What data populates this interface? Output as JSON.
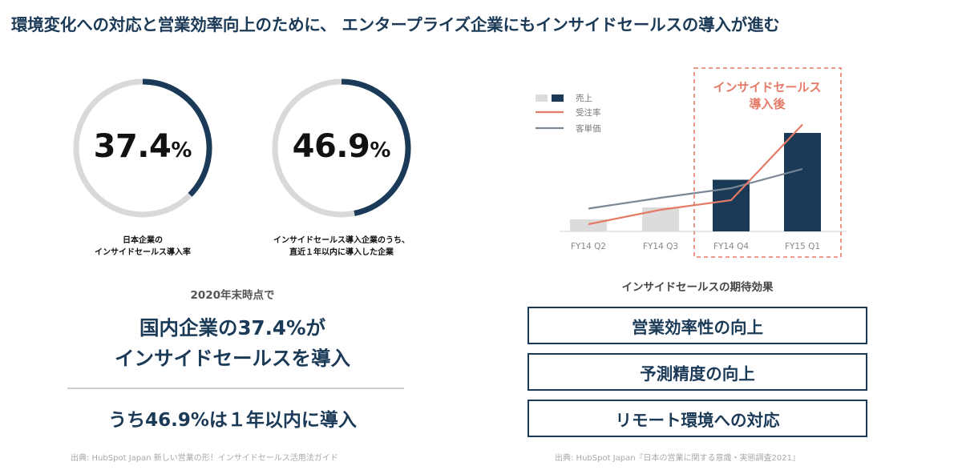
{
  "title": "環境変化への対応と営業効率向上のために、 エンタープライズ企業にもインサイドセールスの導入が進む",
  "rings": [
    {
      "value": "37.4",
      "unit": "%",
      "fraction": 0.374,
      "caption_line1": "日本企業の",
      "caption_line2": "インサイドセールス導入率"
    },
    {
      "value": "46.9",
      "unit": "%",
      "fraction": 0.469,
      "caption_line1": "インサイドセールス導入企業のうち、",
      "caption_line2": "直近１年以内に導入した企業"
    }
  ],
  "left": {
    "as_of": "2020年末時点で",
    "headline_line1": "国内企業の37.4%が",
    "headline_line2": "インサイドセールスを導入",
    "headline2": "うち46.9%は１年以内に導入",
    "source": "出典: HubSpot Japan 新しい営業の形！インサイドセールス活用法ガイド"
  },
  "colors": {
    "navy": "#1b3a57",
    "gray_bar": "#dcdcdc",
    "ring_track": "#d9d9d9",
    "coral": "#e57a66",
    "slate": "#7b8794"
  },
  "chart_data": {
    "type": "bar",
    "categories": [
      "FY14 Q2",
      "FY14 Q3",
      "FY14 Q4",
      "FY15 Q1"
    ],
    "series": [
      {
        "name": "売上",
        "values": [
          1.0,
          2.0,
          4.3,
          8.2
        ]
      },
      {
        "name": "受注率",
        "values": [
          0.6,
          1.8,
          2.6,
          8.9
        ]
      },
      {
        "name": "客単価",
        "values": [
          1.9,
          2.8,
          3.6,
          5.2
        ]
      }
    ],
    "ylim": [
      0,
      10
    ],
    "highlight_label_line1": "インサイドセールス",
    "highlight_label_line2": "導入後",
    "legend_position": "top-left"
  },
  "right": {
    "effects_title": "インサイドセールスの期待効果",
    "effects": [
      "営業効率性の向上",
      "予測精度の向上",
      "リモート環境への対応"
    ],
    "source": "出典: HubSpot Japan『日本の営業に関する意識・実態調査2021』"
  }
}
